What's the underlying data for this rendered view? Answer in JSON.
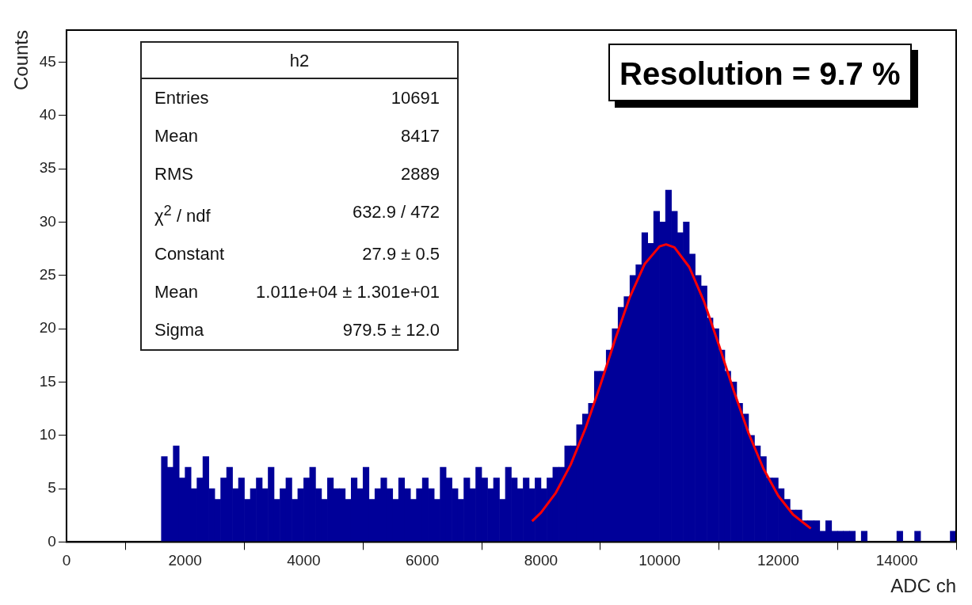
{
  "chart_data": {
    "type": "histogram",
    "xlabel": "ADC ch",
    "ylabel": "Counts",
    "bins": [
      0,
      100,
      200,
      300,
      400,
      500,
      600,
      700,
      800,
      900,
      1000,
      1100,
      1200,
      1300,
      1400,
      1500,
      1600,
      1700,
      1800,
      1900,
      2000,
      2100,
      2200,
      2300,
      2400,
      2500,
      2600,
      2700,
      2800,
      2900,
      3000,
      3100,
      3200,
      3300,
      3400,
      3500,
      3600,
      3700,
      3800,
      3900,
      4000,
      4100,
      4200,
      4300,
      4400,
      4500,
      4600,
      4700,
      4800,
      4900,
      5000,
      5100,
      5200,
      5300,
      5400,
      5500,
      5600,
      5700,
      5800,
      5900,
      6000,
      6100,
      6200,
      6300,
      6400,
      6500,
      6600,
      6700,
      6800,
      6900,
      7000,
      7100,
      7200,
      7300,
      7400,
      7500,
      7600,
      7700,
      7800,
      7900,
      8000,
      8100,
      8200,
      8300,
      8400,
      8500,
      8600,
      8700,
      8800,
      8900,
      9000,
      9100,
      9200,
      9300,
      9400,
      9500,
      9600,
      9700,
      9800,
      9900,
      10000,
      10100,
      10200,
      10300,
      10400,
      10500,
      10600,
      10700,
      10800,
      10900,
      11000,
      11100,
      11200,
      11300,
      11400,
      11500,
      11600,
      11700,
      11800,
      11900,
      12000,
      12100,
      12200,
      12300,
      12400,
      12500,
      12600,
      12700,
      12800,
      12900,
      13000,
      13100,
      13200,
      13300,
      13400,
      13500,
      13600,
      13700,
      13800,
      13900,
      14000,
      14100,
      14200,
      14300,
      14400,
      14500,
      14600,
      14700,
      14800,
      14900,
      15000
    ],
    "values": [
      0,
      0,
      0,
      0,
      0,
      0,
      0,
      0,
      0,
      0,
      0,
      0,
      0,
      0,
      0,
      0,
      8,
      7,
      9,
      6,
      7,
      5,
      6,
      8,
      5,
      4,
      6,
      7,
      5,
      6,
      4,
      5,
      6,
      5,
      7,
      4,
      5,
      6,
      4,
      5,
      6,
      7,
      5,
      4,
      6,
      5,
      5,
      4,
      6,
      5,
      7,
      4,
      5,
      6,
      5,
      4,
      6,
      5,
      4,
      5,
      6,
      5,
      4,
      7,
      6,
      5,
      4,
      6,
      5,
      7,
      6,
      5,
      6,
      4,
      7,
      6,
      5,
      6,
      5,
      6,
      5,
      6,
      7,
      7,
      9,
      9,
      11,
      12,
      13,
      16,
      16,
      18,
      20,
      22,
      23,
      25,
      26,
      29,
      28,
      31,
      30,
      33,
      31,
      29,
      30,
      27,
      25,
      24,
      21,
      20,
      18,
      16,
      15,
      13,
      12,
      10,
      9,
      8,
      6,
      6,
      5,
      4,
      3,
      3,
      2,
      2,
      2,
      1,
      2,
      1,
      1,
      1,
      1,
      0,
      1,
      0,
      0,
      0,
      0,
      0,
      1,
      0,
      0,
      1,
      0,
      0,
      0,
      0,
      0,
      1
    ],
    "color": "#000099",
    "series": [
      {
        "type": "line",
        "color": "#ff0000",
        "marker": "none",
        "line_style": "solid",
        "x": [
          7850,
          8000,
          8250,
          8500,
          8750,
          9000,
          9250,
          9500,
          9750,
          10000,
          10110,
          10250,
          10500,
          10750,
          11000,
          11250,
          11500,
          11750,
          12000,
          12250,
          12550
        ],
        "values": [
          1.95,
          2.75,
          4.61,
          7.24,
          10.65,
          14.69,
          18.98,
          22.99,
          26.08,
          27.72,
          27.9,
          27.62,
          25.78,
          22.54,
          18.47,
          14.18,
          10.2,
          6.88,
          4.34,
          2.57,
          1.26
        ]
      }
    ],
    "xlim": [
      0,
      15000
    ],
    "xticks": [
      0,
      2000,
      4000,
      6000,
      8000,
      10000,
      12000,
      14000
    ],
    "ylim": [
      0,
      48
    ],
    "yticks": [
      0,
      5,
      10,
      15,
      20,
      25,
      30,
      35,
      40,
      45
    ],
    "grid": false,
    "legend": false,
    "annotations": [
      "Resolution = 9.7 %",
      "h2",
      "Entries",
      "10691",
      "Mean",
      "8417",
      "RMS",
      "2889",
      "χ$^{2}$ / ndf",
      "632.9 / 472",
      "Constant",
      "27.9 ± 0.5",
      "Mean",
      "1.011e+04 ± 1.301e+01",
      "Sigma",
      "979.5 ± 12.0"
    ]
  }
}
